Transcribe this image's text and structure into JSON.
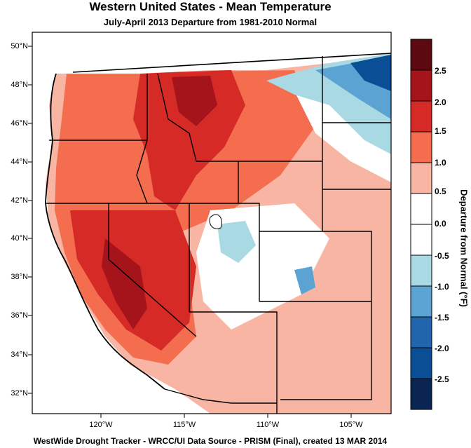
{
  "title": "Western United States - Mean Temperature",
  "subtitle": "July-April 2013  Departure from 1981-2010 Normal",
  "footer": "WestWide Drought Tracker - WRCC/UI  Data Source - PRISM (Final), created 13 MAR 2014",
  "latitude_labels": [
    "50°N",
    "48°N",
    "46°N",
    "44°N",
    "42°N",
    "40°N",
    "38°N",
    "36°N",
    "34°N",
    "32°N"
  ],
  "longitude_labels": [
    "120°W",
    "115°W",
    "110°W",
    "105°W"
  ],
  "colorbar": {
    "title": "Departure from Normal (°F)",
    "tick_labels": [
      "2.5",
      "2.0",
      "1.5",
      "1.0",
      "0.5",
      "0.0",
      "-0.5",
      "-1.0",
      "-1.5",
      "-2.0",
      "-2.5"
    ],
    "colors": [
      "#5c0a0f",
      "#a6141b",
      "#d62a26",
      "#f46d4f",
      "#f8b5a3",
      "#ffffff",
      "#ffffff",
      "#a9dae3",
      "#5aa3d2",
      "#2166ac",
      "#0a4e96",
      "#0b2553"
    ]
  },
  "colors": {
    "warm_dark": "#a6141b",
    "warm": "#d62a26",
    "warm_light": "#f46d4f",
    "warm_pale": "#f8b5a3",
    "neutral": "#ffffff",
    "cool_pale": "#a9dae3",
    "cool": "#5aa3d2",
    "cool_dark": "#0a4e96",
    "ocean": "#ffffff",
    "boundaries": "#000000"
  }
}
